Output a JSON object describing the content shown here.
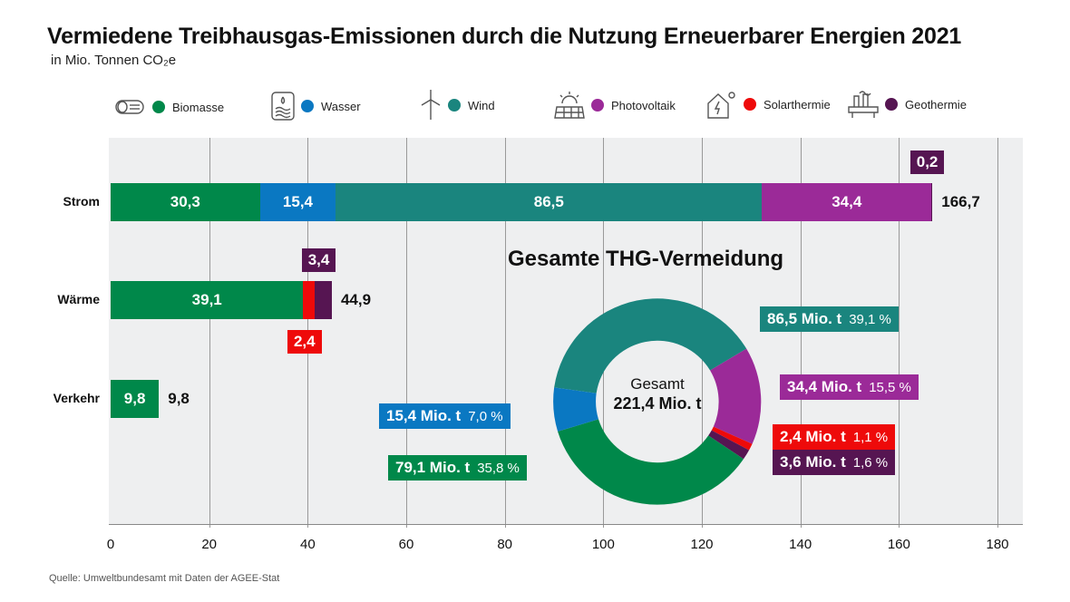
{
  "title": "Vermiedene Treibhausgas-Emissionen durch die Nutzung Erneuerbarer Energien 2021",
  "subtitle": "in Mio. Tonnen CO₂e",
  "source": "Quelle: Umweltbundesamt mit Daten der AGEE-Stat",
  "colors": {
    "Biomasse": "#00884a",
    "Wasser": "#0a78c2",
    "Wind": "#1a857e",
    "Photovoltaik": "#9b2a98",
    "Solarthermie": "#ee0a0a",
    "Geothermie": "#561552"
  },
  "legend": [
    {
      "label": "Biomasse",
      "icon": "biomass-log-icon"
    },
    {
      "label": "Wasser",
      "icon": "water-icon"
    },
    {
      "label": "Wind",
      "icon": "wind-turbine-icon"
    },
    {
      "label": "Photovoltaik",
      "icon": "solar-panel-icon"
    },
    {
      "label": "Solarthermie",
      "icon": "solar-house-icon"
    },
    {
      "label": "Geothermie",
      "icon": "geothermal-plant-icon"
    }
  ],
  "chart_data": [
    {
      "type": "bar",
      "orientation": "horizontal",
      "stacked": true,
      "categories": [
        "Strom",
        "Wärme",
        "Verkehr"
      ],
      "series": [
        {
          "name": "Biomasse",
          "values": [
            30.3,
            39.1,
            9.8
          ],
          "labels": [
            "30,3",
            "39,1",
            "9,8"
          ]
        },
        {
          "name": "Wasser",
          "values": [
            15.4,
            0,
            0
          ],
          "labels": [
            "15,4",
            "",
            ""
          ]
        },
        {
          "name": "Wind",
          "values": [
            86.5,
            0,
            0
          ],
          "labels": [
            "86,5",
            "",
            ""
          ]
        },
        {
          "name": "Photovoltaik",
          "values": [
            34.4,
            0,
            0
          ],
          "labels": [
            "34,4",
            "",
            ""
          ]
        },
        {
          "name": "Solarthermie",
          "values": [
            0,
            2.4,
            0
          ],
          "labels": [
            "",
            "2,4",
            ""
          ]
        },
        {
          "name": "Geothermie",
          "values": [
            0.2,
            3.4,
            0
          ],
          "labels": [
            "0,2",
            "3,4",
            ""
          ]
        }
      ],
      "totals": [
        "166,7",
        "44,9",
        "9,8"
      ],
      "xlim": [
        0,
        180
      ],
      "xticks": [
        "0",
        "20",
        "40",
        "60",
        "80",
        "100",
        "120",
        "140",
        "160",
        "180"
      ],
      "grid": true
    },
    {
      "type": "pie",
      "donut": true,
      "title": "Gesamte THG-Vermeidung",
      "center_label": "Gesamt",
      "center_value": "221,4 Mio. t",
      "slices": [
        {
          "name": "Wind",
          "value": 86.5,
          "label": "86,5 Mio. t",
          "pct": "39,1 %"
        },
        {
          "name": "Photovoltaik",
          "value": 34.4,
          "label": "34,4 Mio. t",
          "pct": "15,5 %"
        },
        {
          "name": "Solarthermie",
          "value": 2.4,
          "label": "2,4 Mio. t",
          "pct": "1,1 %"
        },
        {
          "name": "Geothermie",
          "value": 3.6,
          "label": "3,6 Mio. t",
          "pct": "1,6 %"
        },
        {
          "name": "Biomasse",
          "value": 79.1,
          "label": "79,1 Mio. t",
          "pct": "35,8 %"
        },
        {
          "name": "Wasser",
          "value": 15.4,
          "label": "15,4 Mio. t",
          "pct": "7,0 %"
        }
      ]
    }
  ]
}
